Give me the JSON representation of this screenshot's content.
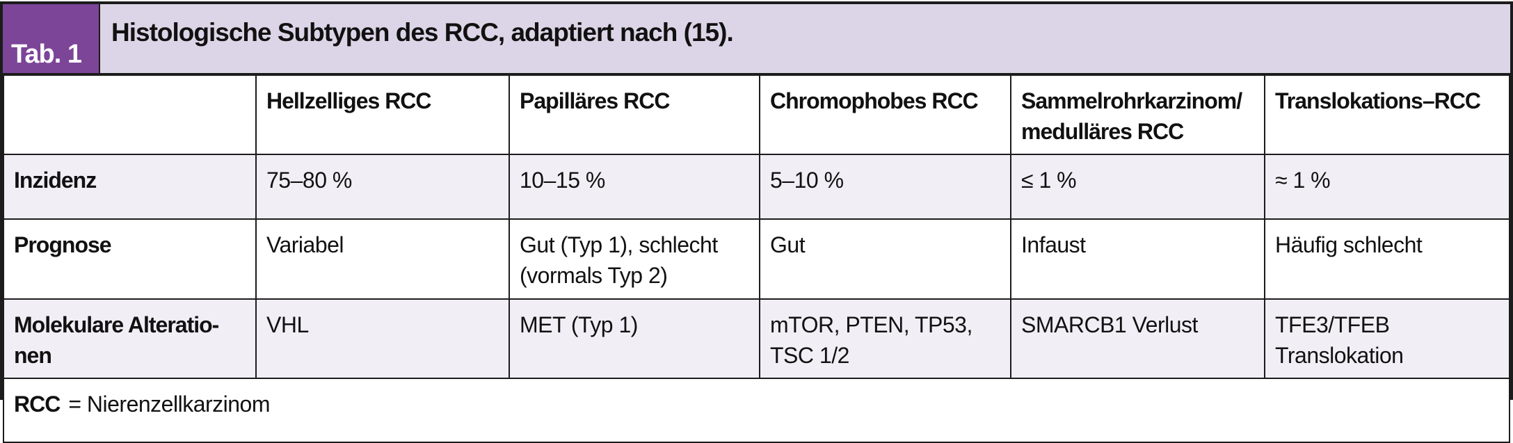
{
  "colors": {
    "tab_badge_purple": "#7c4598",
    "banner_lavender": "#dcd5e7",
    "row_shade_lavender": "#f2eef6",
    "border_black": "#1c1c1c",
    "text_black": "#111111",
    "tab_label_white": "#ffffff"
  },
  "header": {
    "tab_label": "Tab. 1",
    "title": "Histologische Subtypen des RCC, adaptiert nach (15)."
  },
  "table": {
    "column_headers": [
      "",
      "Hellzelliges RCC",
      "Papilläres RCC",
      "Chromophobes RCC",
      "Sammelrohrkarzinom/\nmedulläres RCC",
      "Translokations–RCC"
    ],
    "rows": [
      {
        "label": "Inzidenz",
        "values": [
          "75–80 %",
          "10–15 %",
          "5–10 %",
          "≤ 1 %",
          "≈ 1 %"
        ]
      },
      {
        "label": "Prognose",
        "values": [
          "Variabel",
          "Gut (Typ 1), schlecht\n(vormals Typ 2)",
          "Gut",
          "Infaust",
          "Häufig schlecht"
        ]
      },
      {
        "label": "Molekulare Alteratio-\nnen",
        "values": [
          "VHL",
          "MET (Typ 1)",
          "mTOR, PTEN, TP53,\nTSC 1/2",
          "SMARCB1 Verlust",
          "TFE3/TFEB\nTranslokation"
        ]
      }
    ],
    "footnote": {
      "abbr": "RCC",
      "rest": "= Nierenzellkarzinom"
    }
  }
}
